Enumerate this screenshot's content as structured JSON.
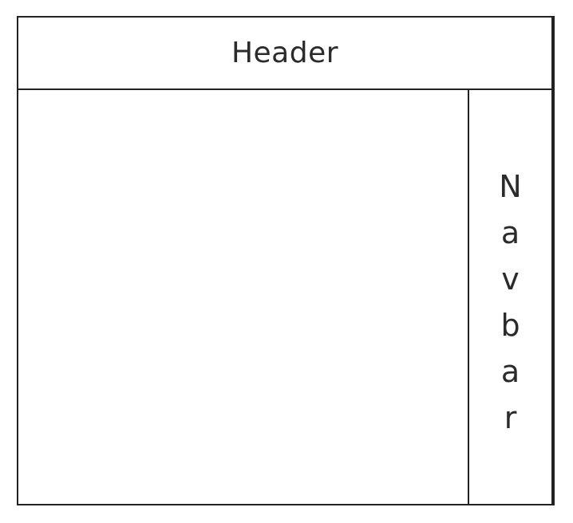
{
  "header": {
    "label": "Header"
  },
  "navbar": {
    "letters": [
      "N",
      "a",
      "v",
      "b",
      "a",
      "r"
    ]
  },
  "colors": {
    "line": "#222222",
    "text": "#2b2b2b",
    "background": "#ffffff"
  }
}
